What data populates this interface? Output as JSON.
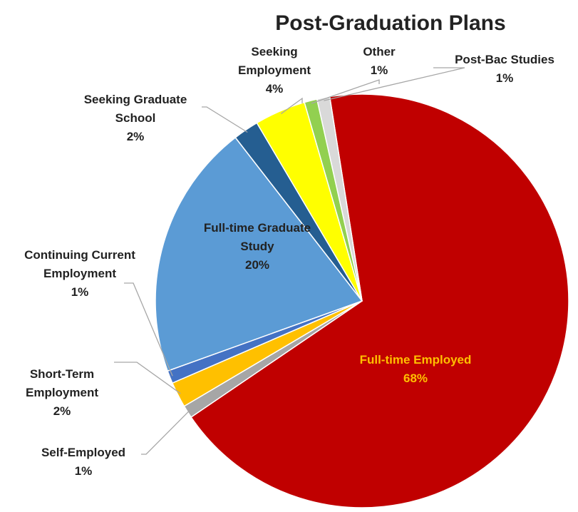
{
  "chart_data": {
    "type": "pie",
    "title": "Post-Graduation Plans",
    "slices": [
      {
        "label": "Full-time Employed",
        "value": 68,
        "pct_label": "68%",
        "color": "#c00000"
      },
      {
        "label": "Self-Employed",
        "value": 1,
        "pct_label": "1%",
        "color": "#a6a6a6"
      },
      {
        "label": "Short-Term Employment",
        "value": 2,
        "pct_label": "2%",
        "color": "#ffc000"
      },
      {
        "label": "Continuing Current Employment",
        "value": 1,
        "pct_label": "1%",
        "color": "#4472c4"
      },
      {
        "label": "Full-time Graduate Study",
        "value": 20,
        "pct_label": "20%",
        "color": "#5b9bd5"
      },
      {
        "label": "Seeking Graduate School",
        "value": 2,
        "pct_label": "2%",
        "color": "#255e91"
      },
      {
        "label": "Seeking Employment",
        "value": 4,
        "pct_label": "4%",
        "color": "#ffff00"
      },
      {
        "label": "Other",
        "value": 1,
        "pct_label": "1%",
        "color": "#92d050"
      },
      {
        "label": "Post-Bac Studies",
        "value": 1,
        "pct_label": "1%",
        "color": "#d9d9d9"
      }
    ]
  }
}
